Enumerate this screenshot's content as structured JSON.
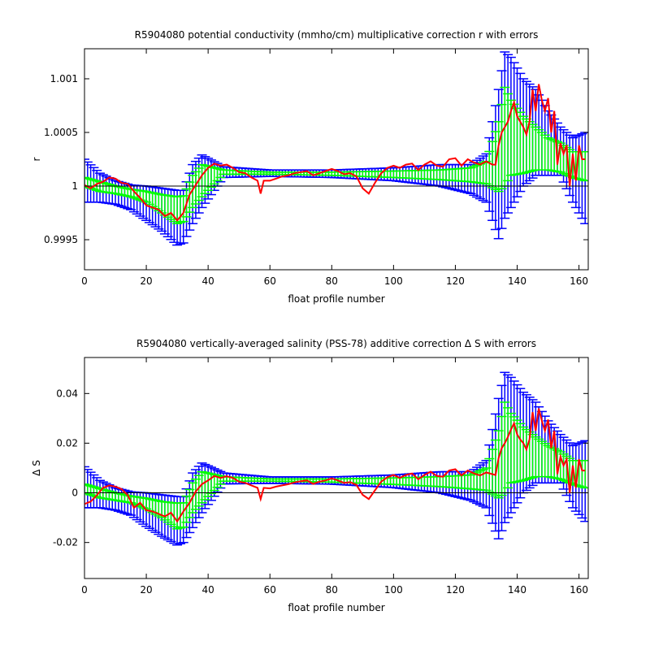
{
  "chart_data": [
    {
      "type": "line",
      "title": "R5904080 potential conductivity (mmho/cm) multiplicative correction r with errors",
      "xlabel": "float profile number",
      "ylabel": "r",
      "xlim": [
        0,
        163
      ],
      "ylim": [
        0.99922,
        1.00128
      ],
      "xticks": [
        0,
        20,
        40,
        60,
        80,
        100,
        120,
        140,
        160
      ],
      "yticks": [
        0.9995,
        1,
        1.0005,
        1.001
      ],
      "ytick_labels": [
        "0.9995",
        "1",
        "1.0005",
        "1.001"
      ],
      "reference_line": 1,
      "series": [
        {
          "role": "wide error bars",
          "color": "#0000ff",
          "x": [
            0,
            5,
            10,
            15,
            20,
            25,
            30,
            32,
            35,
            38,
            45,
            60,
            80,
            100,
            115,
            125,
            130,
            134,
            136,
            138,
            142,
            146,
            150,
            154,
            158,
            162
          ],
          "upper": [
            1.00025,
            1.00012,
            1.00005,
            1.00001,
            1.0,
            0.99998,
            0.99996,
            0.99996,
            1.0002,
            1.00029,
            1.00018,
            1.00015,
            1.00015,
            1.00017,
            1.0002,
            1.0002,
            1.0003,
            1.0009,
            1.00125,
            1.0012,
            1.001,
            1.0009,
            1.0007,
            1.00055,
            1.00045,
            1.0005
          ],
          "lower": [
            0.99985,
            0.99985,
            0.99983,
            0.99978,
            0.99968,
            0.99958,
            0.99945,
            0.99947,
            0.99965,
            0.9998,
            1.00008,
            1.00009,
            1.00008,
            1.00005,
            1.0,
            0.99993,
            0.99985,
            0.99951,
            0.9997,
            0.9998,
            1.0,
            1.0001,
            1.0001,
            1.0001,
            0.99985,
            0.99965
          ]
        },
        {
          "role": "narrow error bars",
          "color": "#00ff00",
          "x": [
            0,
            5,
            10,
            15,
            20,
            25,
            30,
            32,
            35,
            38,
            45,
            60,
            80,
            100,
            115,
            125,
            130,
            134,
            136,
            138,
            142,
            146,
            150,
            154,
            158,
            162
          ],
          "upper": [
            1.00008,
            1.00004,
            1.0,
            0.99997,
            0.99995,
            0.99992,
            0.9999,
            0.99991,
            1.0001,
            1.0002,
            1.00015,
            1.00013,
            1.00013,
            1.00014,
            1.00015,
            1.00017,
            1.00023,
            1.0006,
            1.00092,
            1.0008,
            1.00065,
            1.00055,
            1.00045,
            1.0004,
            1.00032,
            1.00032
          ],
          "lower": [
            1.0,
            0.99995,
            0.99993,
            0.9999,
            0.99985,
            0.99975,
            0.99965,
            0.99967,
            0.9998,
            0.9999,
            1.00011,
            1.00011,
            1.0001,
            1.00008,
            1.00006,
            1.00004,
            1.00002,
            0.99995,
            1.0,
            1.0001,
            1.00012,
            1.00015,
            1.00015,
            1.00013,
            1.00008,
            1.00005
          ]
        },
        {
          "role": "correction",
          "color": "#ff0000",
          "x": [
            0,
            2,
            4,
            6,
            8,
            10,
            12,
            14,
            16,
            18,
            20,
            22,
            24,
            26,
            28,
            30,
            32,
            34,
            36,
            38,
            40,
            42,
            44,
            46,
            48,
            50,
            52,
            54,
            56,
            57,
            58,
            60,
            62,
            64,
            66,
            68,
            70,
            72,
            74,
            76,
            78,
            80,
            82,
            84,
            86,
            88,
            90,
            92,
            94,
            96,
            98,
            100,
            102,
            104,
            106,
            108,
            110,
            112,
            114,
            116,
            118,
            120,
            122,
            124,
            126,
            128,
            130,
            132,
            133,
            134,
            135,
            136,
            137,
            138,
            139,
            140,
            141,
            142,
            143,
            144,
            145,
            146,
            147,
            148,
            149,
            150,
            151,
            152,
            153,
            154,
            155,
            156,
            157,
            158,
            159,
            160,
            161,
            162
          ],
          "y": [
            1.00001,
            0.99998,
            1.00002,
            1.00004,
            1.00008,
            1.00007,
            1.00003,
            1.00002,
            0.99995,
            0.99989,
            0.99982,
            0.9998,
            0.99978,
            0.99972,
            0.99975,
            0.99968,
            0.99975,
            0.99992,
            1.00001,
            1.0001,
            1.00017,
            1.00021,
            1.00019,
            1.0002,
            1.00017,
            1.00013,
            1.00012,
            1.00008,
            1.00005,
            0.99993,
            1.00005,
            1.00005,
            1.00007,
            1.00009,
            1.0001,
            1.00012,
            1.00013,
            1.00014,
            1.0001,
            1.00012,
            1.00014,
            1.00016,
            1.00014,
            1.00011,
            1.00012,
            1.00009,
            0.99998,
            0.99993,
            1.00003,
            1.00012,
            1.00017,
            1.00019,
            1.00017,
            1.0002,
            1.00021,
            1.00015,
            1.0002,
            1.00023,
            1.00019,
            1.00018,
            1.00025,
            1.00026,
            1.00019,
            1.00025,
            1.00022,
            1.0002,
            1.00023,
            1.0002,
            1.0002,
            1.00038,
            1.0005,
            1.00055,
            1.0006,
            1.0007,
            1.00078,
            1.00065,
            1.0006,
            1.00055,
            1.00048,
            1.0006,
            1.0009,
            1.0007,
            1.00095,
            1.0008,
            1.0007,
            1.00082,
            1.0005,
            1.0007,
            1.0002,
            1.0004,
            1.0003,
            1.00038,
            1.0,
            1.0003,
            1.00005,
            1.00038,
            1.00025,
            1.00025
          ]
        }
      ]
    },
    {
      "type": "line",
      "title": "R5904080 vertically-averaged salinity (PSS-78) additive correction Δ S with errors",
      "xlabel": "float profile number",
      "ylabel": "Δ S",
      "xlim": [
        0,
        163
      ],
      "ylim": [
        -0.0345,
        0.0545
      ],
      "xticks": [
        0,
        20,
        40,
        60,
        80,
        100,
        120,
        140,
        160
      ],
      "yticks": [
        -0.02,
        0,
        0.02,
        0.04
      ],
      "ytick_labels": [
        "-0.02",
        "0",
        "0.02",
        "0.04"
      ],
      "reference_line": 0,
      "series": [
        {
          "role": "wide error bars",
          "color": "#0000ff",
          "x": [
            0,
            5,
            10,
            15,
            20,
            25,
            30,
            32,
            35,
            38,
            45,
            60,
            80,
            100,
            115,
            125,
            130,
            134,
            136,
            138,
            142,
            146,
            150,
            154,
            158,
            162
          ],
          "upper": [
            0.0105,
            0.005,
            0.002,
            0.0004,
            0.0,
            -0.0008,
            -0.0015,
            -0.0016,
            0.008,
            0.012,
            0.008,
            0.0064,
            0.0064,
            0.0072,
            0.0085,
            0.0085,
            0.013,
            0.038,
            0.0485,
            0.0465,
            0.0405,
            0.0365,
            0.029,
            0.0235,
            0.019,
            0.021
          ],
          "lower": [
            -0.006,
            -0.006,
            -0.007,
            -0.009,
            -0.0135,
            -0.0175,
            -0.021,
            -0.02,
            -0.014,
            -0.008,
            0.0036,
            0.0038,
            0.0035,
            0.0021,
            0.0,
            -0.003,
            -0.006,
            -0.0185,
            -0.012,
            -0.008,
            0.0,
            0.004,
            0.004,
            0.004,
            -0.006,
            -0.0115
          ]
        },
        {
          "role": "narrow error bars",
          "color": "#00ff00",
          "x": [
            0,
            5,
            10,
            15,
            20,
            25,
            30,
            32,
            35,
            38,
            45,
            60,
            80,
            100,
            115,
            125,
            130,
            134,
            136,
            138,
            142,
            146,
            150,
            154,
            158,
            162
          ],
          "upper": [
            0.0035,
            0.0017,
            0.0,
            -0.0013,
            -0.0022,
            -0.0035,
            -0.0042,
            -0.004,
            0.004,
            0.0085,
            0.0065,
            0.0056,
            0.0056,
            0.006,
            0.0065,
            0.0072,
            0.01,
            0.025,
            0.0365,
            0.032,
            0.0265,
            0.0225,
            0.019,
            0.0165,
            0.013,
            0.013
          ],
          "lower": [
            0.0,
            -0.002,
            -0.003,
            -0.004,
            -0.0065,
            -0.01,
            -0.0145,
            -0.0138,
            -0.008,
            -0.004,
            0.0047,
            0.0047,
            0.0043,
            0.0034,
            0.0025,
            0.0016,
            0.001,
            -0.002,
            0.0,
            0.004,
            0.005,
            0.0065,
            0.0065,
            0.0055,
            0.0035,
            0.002
          ]
        },
        {
          "role": "correction",
          "color": "#ff0000",
          "x": [
            0,
            2,
            4,
            6,
            8,
            10,
            12,
            14,
            16,
            18,
            20,
            22,
            24,
            26,
            28,
            30,
            32,
            34,
            36,
            38,
            40,
            42,
            44,
            46,
            48,
            50,
            52,
            54,
            56,
            57,
            58,
            60,
            62,
            64,
            66,
            68,
            70,
            72,
            74,
            76,
            78,
            80,
            82,
            84,
            86,
            88,
            90,
            92,
            94,
            96,
            98,
            100,
            102,
            104,
            106,
            108,
            110,
            112,
            114,
            116,
            118,
            120,
            122,
            124,
            126,
            128,
            130,
            132,
            133,
            134,
            135,
            136,
            137,
            138,
            139,
            140,
            141,
            142,
            143,
            144,
            145,
            146,
            147,
            148,
            149,
            150,
            151,
            152,
            153,
            154,
            155,
            156,
            157,
            158,
            159,
            160,
            161,
            162
          ],
          "y": [
            -0.0045,
            -0.0035,
            -0.001,
            0.002,
            0.003,
            0.0025,
            0.0015,
            -0.001,
            -0.006,
            -0.004,
            -0.007,
            -0.0075,
            -0.0085,
            -0.0095,
            -0.008,
            -0.0115,
            -0.0075,
            -0.004,
            0.0005,
            0.0035,
            0.005,
            0.0068,
            0.006,
            0.0067,
            0.006,
            0.0045,
            0.004,
            0.003,
            0.002,
            -0.0025,
            0.002,
            0.0018,
            0.0025,
            0.003,
            0.0035,
            0.0042,
            0.0047,
            0.005,
            0.0036,
            0.0045,
            0.005,
            0.0058,
            0.005,
            0.004,
            0.0043,
            0.0032,
            -0.0008,
            -0.0025,
            0.001,
            0.0045,
            0.0063,
            0.0072,
            0.006,
            0.0072,
            0.0078,
            0.0055,
            0.0072,
            0.0085,
            0.0068,
            0.0065,
            0.009,
            0.0095,
            0.007,
            0.009,
            0.0078,
            0.007,
            0.0082,
            0.0075,
            0.0072,
            0.014,
            0.018,
            0.02,
            0.0225,
            0.0255,
            0.028,
            0.0235,
            0.0215,
            0.02,
            0.0175,
            0.0215,
            0.0325,
            0.025,
            0.034,
            0.029,
            0.025,
            0.0295,
            0.018,
            0.025,
            0.0075,
            0.0145,
            0.011,
            0.0135,
            0.0,
            0.011,
            0.002,
            0.0135,
            0.009,
            0.009
          ]
        }
      ]
    }
  ]
}
